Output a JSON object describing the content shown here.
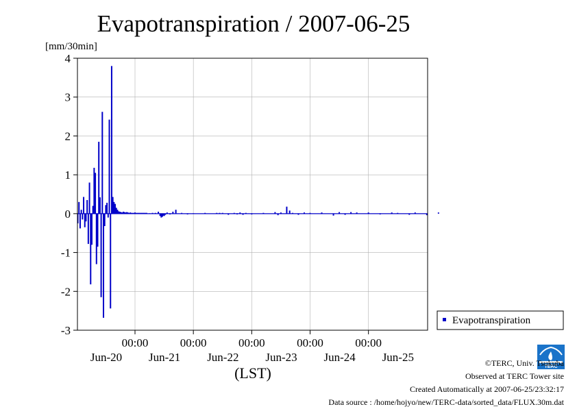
{
  "chart_data": {
    "type": "bar",
    "title": "Evapotranspiration / 2007-06-25",
    "ylabel": "[mm/30min]",
    "xlabel": "(LST)",
    "ylim": [
      -3,
      4
    ],
    "yticks": [
      4,
      3,
      2,
      1,
      0,
      -1,
      -2,
      -3
    ],
    "x_domain_days": [
      -1,
      5
    ],
    "xticks": [
      {
        "pos": 0,
        "time": "00:00",
        "date": "Jun-20"
      },
      {
        "pos": 1,
        "time": "00:00",
        "date": "Jun-21"
      },
      {
        "pos": 2,
        "time": "00:00",
        "date": "Jun-22"
      },
      {
        "pos": 3,
        "time": "00:00",
        "date": "Jun-23"
      },
      {
        "pos": 4,
        "time": "00:00",
        "date": "Jun-24"
      },
      {
        "pos": 5,
        "time": "",
        "date": "Jun-25"
      }
    ],
    "grid": true,
    "legend_position": "bottom-right outside",
    "series": [
      {
        "name": "Evapotranspiration",
        "color": "#0000c8",
        "x": [
          -0.98,
          -0.96,
          -0.94,
          -0.92,
          -0.9,
          -0.88,
          -0.86,
          -0.84,
          -0.82,
          -0.8,
          -0.78,
          -0.76,
          -0.74,
          -0.72,
          -0.7,
          -0.68,
          -0.66,
          -0.64,
          -0.62,
          -0.6,
          -0.58,
          -0.56,
          -0.54,
          -0.52,
          -0.5,
          -0.48,
          -0.46,
          -0.44,
          -0.42,
          -0.4,
          -0.38,
          -0.36,
          -0.34,
          -0.32,
          -0.3,
          -0.28,
          -0.26,
          -0.24,
          -0.22,
          -0.2,
          -0.18,
          -0.16,
          -0.14,
          -0.12,
          -0.1,
          -0.08,
          -0.06,
          -0.04,
          -0.02,
          0.0,
          0.02,
          0.04,
          0.06,
          0.08,
          0.1,
          0.12,
          0.14,
          0.16,
          0.18,
          0.2,
          0.25,
          0.3,
          0.35,
          0.4,
          0.43,
          0.45,
          0.47,
          0.49,
          0.5,
          0.52,
          0.55,
          0.6,
          0.65,
          0.7,
          0.8,
          0.9,
          1.0,
          1.2,
          1.4,
          1.45,
          1.5,
          1.6,
          1.7,
          1.75,
          1.8,
          1.85,
          1.9,
          2.0,
          2.2,
          2.4,
          2.45,
          2.5,
          2.6,
          2.65,
          2.7,
          2.8,
          2.9,
          3.0,
          3.2,
          3.4,
          3.5,
          3.6,
          3.7,
          3.8,
          4.0,
          4.2,
          4.4,
          4.5,
          4.7,
          4.8,
          5.0,
          5.2
        ],
        "values": [
          -0.25,
          0.3,
          -0.38,
          0.1,
          -0.15,
          0.43,
          -0.35,
          -0.2,
          0.35,
          -0.78,
          0.8,
          -1.82,
          -0.8,
          0.2,
          1.18,
          1.05,
          -1.3,
          -0.85,
          1.85,
          0.42,
          -2.15,
          2.62,
          -2.68,
          -0.32,
          0.22,
          0.28,
          -0.1,
          2.42,
          -2.44,
          3.8,
          0.43,
          0.3,
          0.25,
          0.15,
          0.1,
          0.06,
          0.05,
          0.04,
          0.03,
          0.05,
          0.04,
          0.03,
          0.04,
          0.03,
          0.02,
          0.03,
          0.02,
          0.02,
          0.02,
          0.03,
          0.02,
          0.02,
          0.02,
          0.02,
          0.02,
          0.02,
          0.02,
          0.02,
          0.02,
          0.02,
          0.01,
          0.02,
          0.02,
          0.05,
          -0.06,
          -0.1,
          -0.08,
          -0.05,
          -0.06,
          -0.03,
          0.03,
          -0.02,
          0.05,
          0.1,
          0.02,
          -0.02,
          0.01,
          0.02,
          0.02,
          0.02,
          0.02,
          -0.03,
          0.02,
          -0.02,
          0.03,
          -0.03,
          0.02,
          -0.02,
          0.02,
          0.04,
          -0.04,
          0.03,
          0.18,
          0.08,
          0.02,
          -0.03,
          0.03,
          0.02,
          0.03,
          -0.05,
          0.04,
          -0.03,
          0.04,
          0.03,
          0.03,
          -0.02,
          0.03,
          0.02,
          -0.03,
          0.03,
          -0.04,
          0.03
        ]
      }
    ]
  },
  "footer": {
    "copyright": "©TERC, Univ. Tsukuba",
    "observed": "Observed at TERC Tower site",
    "created": "Created Automatically at 2007-06-25/23:32:17",
    "source": "Data source : /home/hojyo/new/TERC-data/sorted_data/FLUX.30m.dat",
    "logo_text": "TERC",
    "logo_color": "#1a73c9"
  }
}
